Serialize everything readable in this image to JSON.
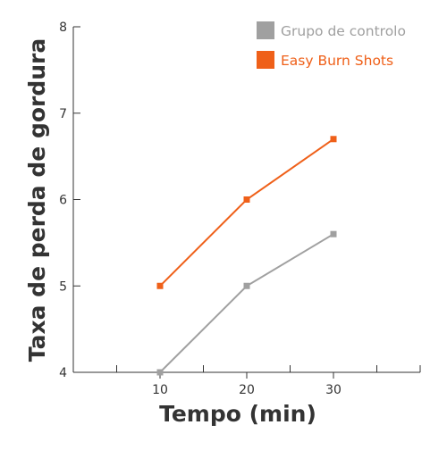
{
  "chart_data": {
    "type": "line",
    "title": "",
    "xlabel": "Tempo (min)",
    "ylabel": "Taxa de perda de gordura",
    "x": [
      10,
      20,
      30
    ],
    "x_ticks": [
      "10",
      "20",
      "30"
    ],
    "xlim": [
      0,
      40
    ],
    "ylim": [
      4,
      8
    ],
    "y_ticks": [
      "4",
      "5",
      "6",
      "7",
      "8"
    ],
    "grid": false,
    "legend_position": "top-right",
    "series": [
      {
        "name": "Grupo de controlo",
        "values": [
          4.0,
          5.0,
          5.6
        ],
        "color": "#a0a0a0"
      },
      {
        "name": "Easy Burn Shots",
        "values": [
          5.0,
          6.0,
          6.7
        ],
        "color": "#ef6019"
      }
    ]
  }
}
